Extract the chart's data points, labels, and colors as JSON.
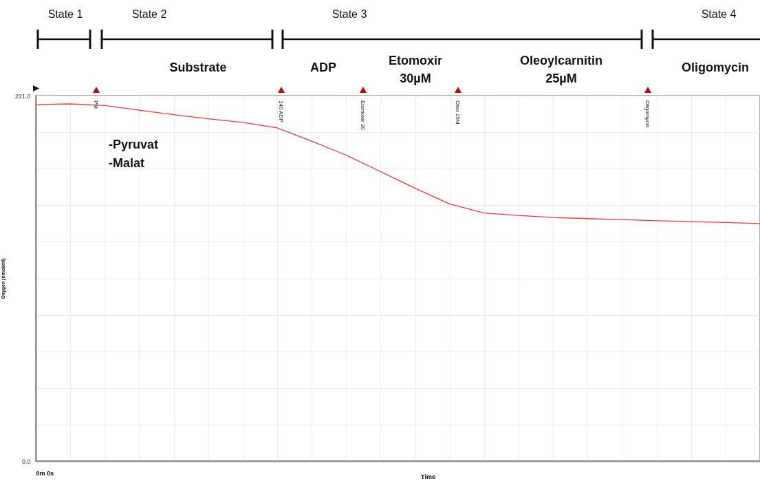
{
  "chart_data": {
    "type": "line",
    "ylabel": "Oxygen (nmol/ml)",
    "xlabel": "Time",
    "categories": [
      "0m 0s",
      null,
      null,
      null,
      null,
      null,
      null,
      null,
      null,
      null,
      null,
      null,
      null,
      null,
      null,
      null,
      null,
      null,
      null,
      null,
      null,
      null
    ],
    "series": [
      {
        "color": "#ff3333",
        "values": [
          215.5,
          216,
          215.0,
          212.2,
          209.5,
          207.0,
          204.8,
          201.5,
          193.5,
          185,
          175,
          165,
          155.5,
          150,
          148.5,
          147.3,
          146.6,
          146,
          145.3,
          144.8,
          144.3,
          143.6
        ]
      }
    ],
    "ylim": [
      0,
      221
    ],
    "yticks": [
      {
        "value": 0,
        "label": "0.0"
      },
      {
        "value": 22.1,
        "label": null
      },
      {
        "value": 44.2,
        "label": null
      },
      {
        "value": 66.3,
        "label": null
      },
      {
        "value": 88.4,
        "label": null
      },
      {
        "value": 110.5,
        "label": null
      },
      {
        "value": 132.6,
        "label": null
      },
      {
        "value": 154.7,
        "label": null
      },
      {
        "value": 176.8,
        "label": null
      },
      {
        "value": 198.9,
        "label": null
      },
      {
        "value": 221,
        "label": "221.0"
      }
    ],
    "grid": true,
    "legend": false,
    "marker": "none",
    "line_style": "solid",
    "annotations": [
      "State 1",
      "State 2",
      "State 3",
      "State 4",
      "Substrate",
      "ADP",
      "Etomoxir 30µM",
      "Oleoylcarnitin 25µM",
      "Oligomycin",
      "-Pyruvat",
      "-Malat",
      "PM",
      "140 ADP",
      "Etomoxir 30",
      "Oleo 25M",
      "Oligomycin"
    ]
  }
}
